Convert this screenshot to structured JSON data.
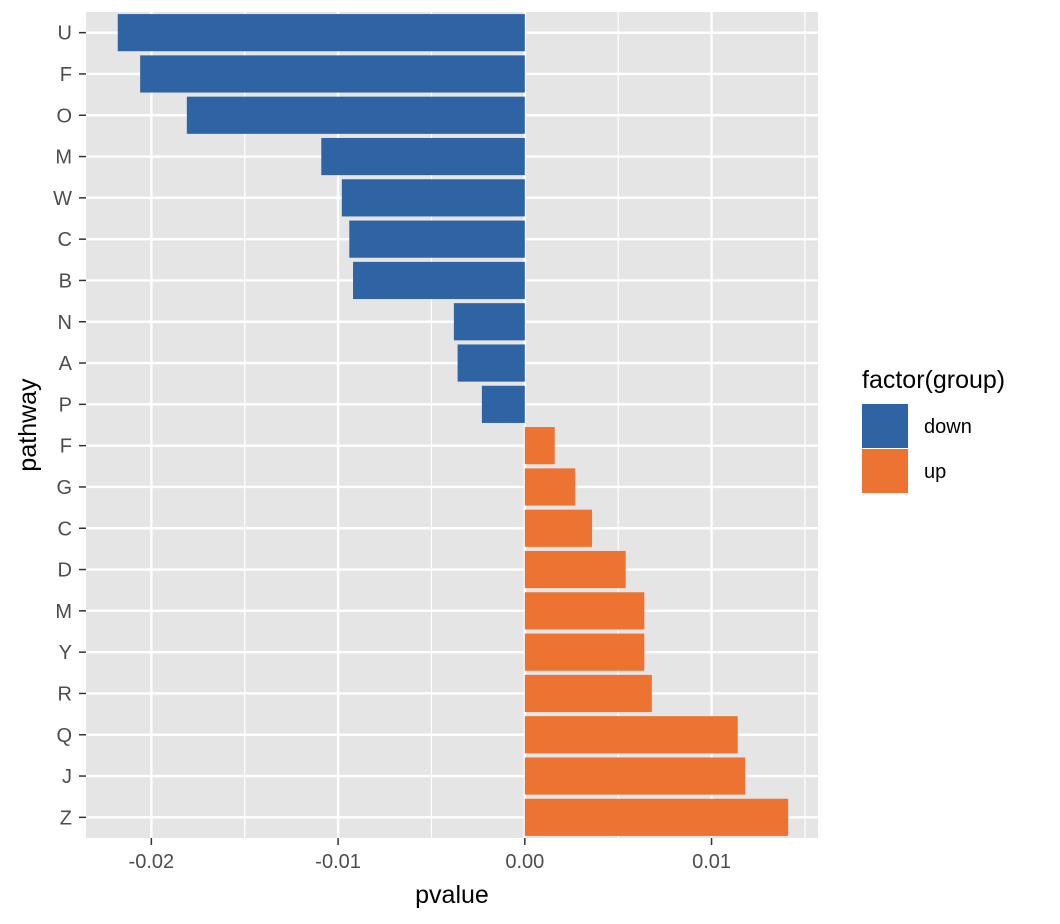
{
  "chart_data": {
    "type": "bar",
    "orientation": "horizontal",
    "xlabel": "pvalue",
    "ylabel": "pathway",
    "xlim": [
      -0.0235,
      0.0157
    ],
    "x_ticks": [
      {
        "value": -0.02,
        "label": "-0.02"
      },
      {
        "value": -0.01,
        "label": "-0.01"
      },
      {
        "value": 0,
        "label": "0.00"
      },
      {
        "value": 0.01,
        "label": "0.01"
      }
    ],
    "categories": [
      "U",
      "F",
      "O",
      "M",
      "W",
      "C",
      "B",
      "N",
      "A",
      "P",
      "F",
      "G",
      "C",
      "D",
      "M",
      "Y",
      "R",
      "Q",
      "J",
      "Z"
    ],
    "values": [
      -0.0218,
      -0.0206,
      -0.0181,
      -0.0109,
      -0.0098,
      -0.0094,
      -0.0092,
      -0.0038,
      -0.0036,
      -0.0023,
      0.0016,
      0.0027,
      0.0036,
      0.0054,
      0.0064,
      0.0064,
      0.0068,
      0.0114,
      0.0118,
      0.0141
    ],
    "groups": [
      "down",
      "down",
      "down",
      "down",
      "down",
      "down",
      "down",
      "down",
      "down",
      "down",
      "up",
      "up",
      "up",
      "up",
      "up",
      "up",
      "up",
      "up",
      "up",
      "up"
    ],
    "grid": true,
    "legend": {
      "title": "factor(group)",
      "placement": "right",
      "entries": [
        {
          "key": "down",
          "label": "down",
          "color": "#2e63a4"
        },
        {
          "key": "up",
          "label": "up",
          "color": "#ec7332"
        }
      ]
    },
    "colors": {
      "panel_background": "#e5e5e5",
      "grid_line": "#ffffff",
      "tick_color": "#333333"
    }
  }
}
